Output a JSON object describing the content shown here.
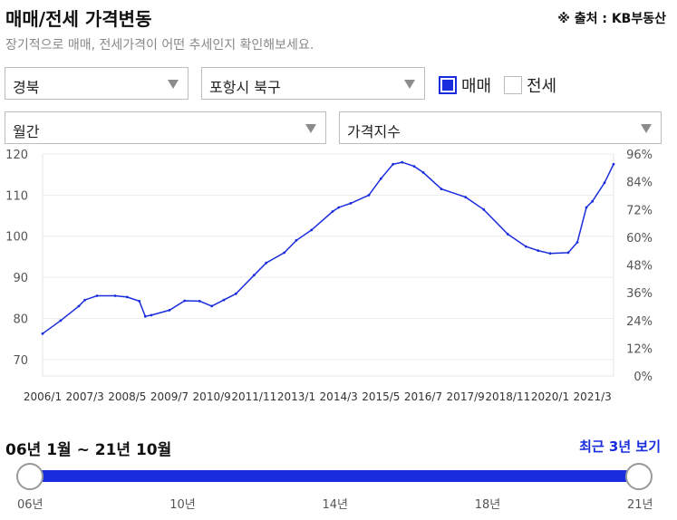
{
  "header": {
    "title": "매매/전세 가격변동",
    "source": "※ 출처 : KB부동산",
    "subtitle": "장기적으로 매매, 전세가격이 어떤 추세인지 확인해보세요."
  },
  "filters": {
    "region": "경북",
    "district": "포항시 북구",
    "period": "월간",
    "metric": "가격지수",
    "sale_label": "매매",
    "jeonse_label": "전세",
    "sale_checked": true,
    "jeonse_checked": false
  },
  "chart_data": {
    "type": "line",
    "title": "",
    "xlabel": "",
    "ylabel": "",
    "x_tick_labels": [
      "2006/1",
      "2007/3",
      "2008/5",
      "2009/7",
      "2010/9",
      "2011/11",
      "2013/1",
      "2014/3",
      "2015/5",
      "2016/7",
      "2017/9",
      "2018/11",
      "2020/1",
      "2021/3"
    ],
    "y_ticks": [
      70,
      80,
      90,
      100,
      110,
      120
    ],
    "ylim": [
      66,
      120
    ],
    "y2_tick_labels": [
      "0%",
      "12%",
      "24%",
      "36%",
      "48%",
      "60%",
      "72%",
      "84%",
      "96%"
    ],
    "grid": true,
    "line_color": "#1a2dde",
    "series": [
      {
        "x": [
          "2006/1",
          "2006/7",
          "2007/1",
          "2007/3",
          "2007/7",
          "2008/1",
          "2008/5",
          "2008/9",
          "2008/11",
          "2009/1",
          "2009/7",
          "2009/12",
          "2010/5",
          "2010/9",
          "2011/1",
          "2011/5",
          "2011/11",
          "2012/3",
          "2012/9",
          "2013/1",
          "2013/6",
          "2014/1",
          "2014/3",
          "2014/7",
          "2015/1",
          "2015/5",
          "2015/9",
          "2015/12",
          "2016/4",
          "2016/7",
          "2017/1",
          "2017/9",
          "2018/3",
          "2018/11",
          "2019/5",
          "2019/9",
          "2020/1",
          "2020/7",
          "2020/10",
          "2021/1",
          "2021/3",
          "2021/7",
          "2021/10"
        ],
        "values": [
          76.3,
          79.5,
          83.0,
          84.5,
          85.5,
          85.5,
          85.2,
          84.2,
          80.5,
          80.8,
          82.0,
          84.3,
          84.2,
          83.0,
          84.5,
          86.0,
          90.5,
          93.5,
          96.0,
          99.0,
          101.5,
          106.0,
          107.0,
          108.0,
          110.0,
          114.0,
          117.5,
          118.0,
          117.0,
          115.5,
          111.5,
          109.5,
          106.5,
          100.5,
          97.5,
          96.5,
          95.8,
          96.0,
          98.5,
          107.0,
          108.5,
          113.0,
          117.5
        ]
      }
    ]
  },
  "slider": {
    "range_label": "06년 1월 ~ 21년 10월",
    "recent_button": "최근 3년 보기",
    "ticks": [
      "06년",
      "10년",
      "14년",
      "18년",
      "21년"
    ]
  }
}
